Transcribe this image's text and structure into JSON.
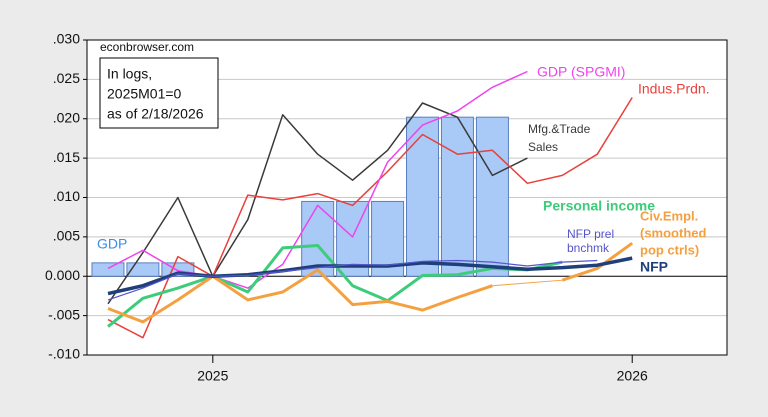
{
  "chart_data": {
    "type": "line",
    "source": "econbrowser.com",
    "annotation": [
      "In logs,",
      "2025M01=0",
      "as of 2/18/2026"
    ],
    "x": [
      2024.75,
      2024.8333,
      2024.9167,
      2025,
      2025.0833,
      2025.1667,
      2025.25,
      2025.3333,
      2025.4167,
      2025.5,
      2025.5833,
      2025.6667,
      2025.75,
      2025.8333,
      2025.9167,
      2026
    ],
    "xlim": [
      2024.7,
      2026.226
    ],
    "xticks": [
      2025,
      2026
    ],
    "ylim": [
      -0.01,
      0.03
    ],
    "yticks": [
      {
        "value": -0.01,
        "label": "-.010"
      },
      {
        "value": -0.005,
        "label": "-.005"
      },
      {
        "value": 0,
        "label": "0.000"
      },
      {
        "value": 0.005,
        "label": ".005"
      },
      {
        "value": 0.01,
        "label": ".010"
      },
      {
        "value": 0.015,
        "label": ".015"
      },
      {
        "value": 0.02,
        "label": ".020"
      },
      {
        "value": 0.025,
        "label": ".025"
      },
      {
        "value": 0.03,
        "label": ".030"
      }
    ],
    "grid": true,
    "series": [
      {
        "name": [
          "GDP"
        ],
        "type": "bar",
        "color": "#a9c9f7",
        "values": [
          0.0017,
          0.0017,
          0.0017,
          0,
          0,
          0,
          0.0095,
          0.0095,
          0.0095,
          0.0202,
          0.0202,
          0.0202,
          null,
          null,
          null,
          null
        ]
      },
      {
        "name": [
          "Mfg.&Trade",
          "Sales"
        ],
        "color": "#3a3a3a",
        "values": [
          -0.0035,
          0.003,
          0.01,
          0,
          0.0072,
          0.0205,
          0.0155,
          0.0122,
          0.016,
          0.022,
          0.0202,
          0.0128,
          0.015,
          null,
          null,
          null
        ]
      },
      {
        "name": [
          "Indus.Prdn."
        ],
        "color": "#e8413c",
        "values": [
          -0.0055,
          -0.0078,
          0.0025,
          0,
          0.0103,
          0.0097,
          0.0105,
          0.009,
          0.0133,
          0.018,
          0.0155,
          0.016,
          0.0118,
          0.0128,
          0.0155,
          0.0227
        ]
      },
      {
        "name": [
          "GDP (SPGMI)"
        ],
        "color": "#ee44ee",
        "values": [
          0.001,
          0.0033,
          0.0007,
          0,
          -0.0015,
          0.0015,
          0.009,
          0.005,
          0.0145,
          0.0192,
          0.021,
          0.024,
          0.026,
          null,
          null,
          null
        ]
      },
      {
        "name": [
          "Personal income"
        ],
        "color": "#3dcc7a",
        "values": [
          -0.0064,
          -0.0028,
          -0.0015,
          0,
          -0.002,
          0.0036,
          0.0039,
          -0.0012,
          -0.0031,
          0.0001,
          0.0002,
          0.001,
          0.0008,
          0.0018,
          null,
          null
        ]
      },
      {
        "name": [
          "Civ.Empl.",
          "(smoothed",
          "pop ctrls)"
        ],
        "color": "#f5a040",
        "values": [
          -0.0041,
          -0.0058,
          -0.003,
          0,
          -0.003,
          -0.002,
          0.0008,
          -0.0036,
          -0.0032,
          -0.0043,
          -0.0027,
          -0.0012,
          null,
          -0.0005,
          0.001,
          0.0042
        ]
      },
      {
        "name": [
          "NFP"
        ],
        "color": "#1f3f7a",
        "values": [
          -0.0022,
          -0.0012,
          0.0004,
          0,
          0.0002,
          0.0007,
          0.0013,
          0.0013,
          0.0013,
          0.0017,
          0.0015,
          0.0012,
          0.0009,
          0.0011,
          0.0014,
          0.0023
        ]
      },
      {
        "name": [
          "NFP prel",
          "bnchmk"
        ],
        "color": "#5555cc",
        "values": [
          -0.003,
          -0.0015,
          0.0003,
          0,
          0.0001,
          0.0006,
          0.0011,
          0.0015,
          0.0014,
          0.0019,
          0.002,
          0.0018,
          0.0013,
          0.0018,
          0.002,
          null
        ]
      }
    ]
  }
}
